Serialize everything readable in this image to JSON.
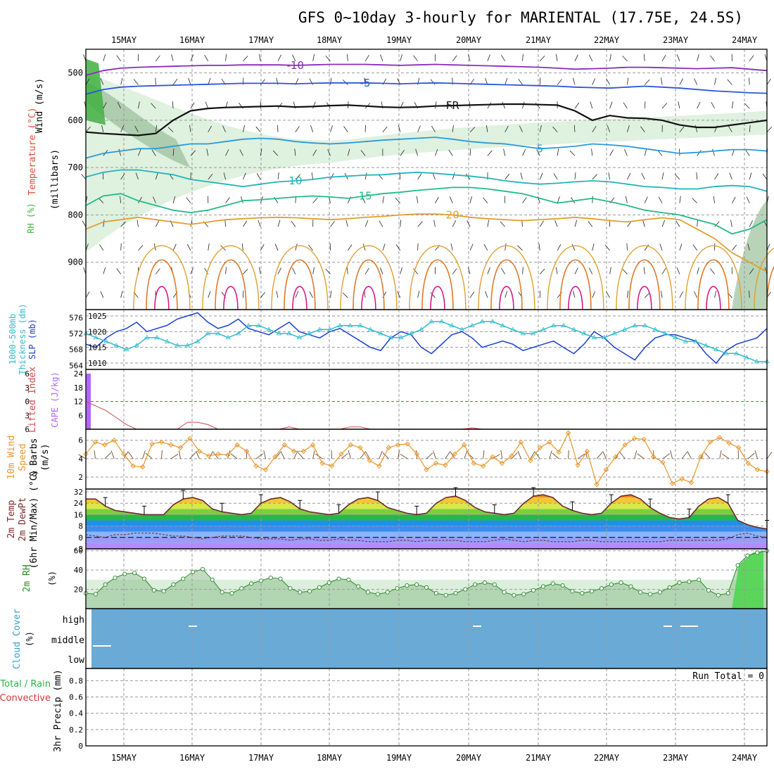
{
  "title": "GFS 0~10day 3-hourly for MARIENTAL (17.75E, 24.5S)",
  "dates": [
    "15MAY",
    "16MAY",
    "17MAY",
    "18MAY",
    "19MAY",
    "20MAY",
    "21MAY",
    "22MAY",
    "23MAY",
    "24MAY"
  ],
  "colors": {
    "frame": "#000000",
    "grid": "#9a9a9a",
    "rh_light": "#dcefdc",
    "rh_mid": "#a8c8a8",
    "rh_dark": "#40b040",
    "cloud": "#6aaad6",
    "cape_bar": "#b266ff",
    "li_line": "#d04848",
    "slp_line": "#1a3fd0",
    "thk_line": "#33bbcc",
    "wind_line": "#e8962a",
    "barb": "#6b4a2a",
    "rh2m_fill": "#8fbf8f",
    "rh2m_line": "#2a8a2a"
  },
  "chart_data": [
    {
      "panel": "upper_air",
      "type": "heatmap",
      "ylabel": "(millibars)",
      "left_labels": [
        "Wind (m/s)",
        "Temperature (°C)",
        "RH (%)"
      ],
      "ylim": [
        1000,
        450
      ],
      "yticks": [
        500,
        600,
        700,
        800,
        900
      ],
      "isotherm_labels": [
        "-10",
        "-5",
        "FR",
        "5",
        "10",
        "15",
        "20"
      ],
      "isotherms": [
        {
          "label": "-10",
          "color": "#8a2aba",
          "p": [
            505,
            495,
            490,
            488,
            487,
            486,
            485,
            484,
            484,
            483,
            483,
            483,
            484,
            483,
            482,
            482,
            482,
            483,
            484,
            483,
            482,
            483,
            484,
            485,
            486,
            487,
            488,
            490,
            492,
            491,
            490,
            488,
            488,
            489,
            490,
            491,
            490,
            489,
            492,
            495
          ]
        },
        {
          "label": "-5",
          "color": "#2a55d8",
          "p": [
            545,
            535,
            530,
            528,
            527,
            526,
            525,
            524,
            523,
            522,
            522,
            522,
            523,
            522,
            521,
            521,
            521,
            522,
            523,
            522,
            521,
            522,
            523,
            524,
            525,
            526,
            527,
            528,
            530,
            531,
            532,
            530,
            528,
            530,
            532,
            535,
            538,
            540,
            542,
            543
          ]
        },
        {
          "label": "FR",
          "color": "#111111",
          "p": [
            625,
            628,
            630,
            632,
            628,
            600,
            580,
            575,
            573,
            572,
            571,
            570,
            572,
            571,
            569,
            568,
            570,
            572,
            573,
            572,
            570,
            569,
            568,
            567,
            566,
            566,
            567,
            568,
            580,
            600,
            590,
            595,
            596,
            600,
            610,
            615,
            615,
            610,
            605,
            600
          ]
        },
        {
          "label": "5",
          "color": "#2a9ad8",
          "p": [
            680,
            670,
            665,
            660,
            660,
            655,
            650,
            650,
            645,
            640,
            638,
            640,
            645,
            648,
            650,
            648,
            645,
            642,
            640,
            638,
            636,
            640,
            645,
            648,
            650,
            655,
            660,
            658,
            655,
            650,
            652,
            655,
            660,
            665,
            670,
            668,
            665,
            662,
            662,
            665
          ]
        },
        {
          "label": "10",
          "color": "#20b4bc",
          "p": [
            720,
            710,
            705,
            705,
            710,
            715,
            725,
            730,
            735,
            740,
            735,
            730,
            728,
            725,
            720,
            718,
            716,
            715,
            712,
            710,
            712,
            715,
            718,
            722,
            728,
            732,
            735,
            733,
            730,
            728,
            730,
            735,
            740,
            742,
            745,
            745,
            740,
            738,
            740,
            750
          ]
        },
        {
          "label": "15",
          "color": "#22bb88",
          "p": [
            780,
            760,
            755,
            770,
            780,
            790,
            795,
            790,
            780,
            770,
            768,
            765,
            762,
            760,
            762,
            765,
            760,
            755,
            752,
            748,
            745,
            742,
            742,
            745,
            750,
            755,
            765,
            775,
            770,
            765,
            772,
            780,
            790,
            795,
            800,
            810,
            820,
            840,
            830,
            810
          ]
        },
        {
          "label": "20",
          "color": "#e0a030",
          "p": [
            830,
            815,
            810,
            805,
            810,
            815,
            820,
            815,
            810,
            808,
            806,
            805,
            806,
            808,
            810,
            808,
            805,
            803,
            800,
            798,
            798,
            800,
            805,
            808,
            810,
            812,
            810,
            808,
            805,
            808,
            812,
            815,
            810,
            806,
            810,
            830,
            850,
            880,
            900,
            920
          ]
        }
      ],
      "wind_barbs": "3-hourly barbs at each 50 mb level"
    },
    {
      "panel": "slp_thickness",
      "type": "line",
      "left_labels": [
        "1000-500mb",
        "Thickness (dm)",
        "SLP (mb)"
      ],
      "y_left": {
        "ticks": [
          564,
          568,
          572,
          576
        ],
        "lim": [
          563,
          578
        ]
      },
      "y_right": {
        "ticks": [
          1010,
          1015,
          1020,
          1025
        ],
        "lim": [
          1008,
          1027
        ]
      },
      "series": [
        {
          "name": "SLP (mb)",
          "axis": "right",
          "values": [
            1016,
            1015,
            1018,
            1020,
            1021,
            1023,
            1020,
            1021,
            1022,
            1024,
            1025,
            1026,
            1023,
            1021,
            1022,
            1024,
            1021,
            1020,
            1019,
            1021,
            1023,
            1020,
            1019,
            1018,
            1020,
            1021,
            1019,
            1017,
            1015,
            1014,
            1018,
            1020,
            1019,
            1015,
            1013,
            1016,
            1019,
            1020,
            1018,
            1015,
            1016,
            1017,
            1016,
            1014,
            1015,
            1016,
            1017,
            1015,
            1013,
            1016,
            1020,
            1018,
            1015,
            1013,
            1011,
            1015,
            1018,
            1019,
            1019,
            1018,
            1017,
            1013,
            1010,
            1014,
            1016,
            1017,
            1018,
            1021
          ]
        },
        {
          "name": "1000-500mb Thickness (dm)",
          "axis": "left",
          "values": [
            572,
            571,
            570,
            569,
            568,
            569,
            571,
            571,
            570,
            569,
            569,
            570,
            572,
            572,
            571,
            572,
            574,
            574,
            573,
            572,
            572,
            571,
            572,
            573,
            573,
            574,
            574,
            574,
            573,
            572,
            571,
            571,
            572,
            573,
            575,
            575,
            574,
            573,
            574,
            575,
            575,
            574,
            573,
            572,
            572,
            573,
            574,
            574,
            573,
            572,
            571,
            571,
            572,
            573,
            574,
            574,
            573,
            572,
            571,
            570,
            570,
            569,
            568,
            567,
            567,
            566,
            565,
            565
          ]
        }
      ]
    },
    {
      "panel": "cape_li",
      "type": "line",
      "left_labels": [
        "Lifted Index",
        "CAPE (J/kg)"
      ],
      "y_left": {
        "ticks": [
          "-6",
          "-3",
          "0",
          "3",
          "6"
        ]
      },
      "y_right": {
        "ticks": [
          "24",
          "18",
          "12",
          "6"
        ]
      },
      "cape_bars": [
        {
          "index": 0,
          "value": 24
        }
      ],
      "lifted_index": [
        0,
        1,
        2,
        3.5,
        5,
        6,
        6,
        6,
        6,
        6,
        4.5,
        4.5,
        5,
        6,
        6,
        6,
        6,
        6,
        6,
        6,
        5.5,
        6,
        6,
        6,
        6,
        6,
        5.5,
        5.5,
        6,
        6,
        6,
        6,
        6,
        6,
        6,
        6,
        6,
        6,
        5.7,
        6,
        6,
        6,
        6,
        6,
        6,
        6,
        6,
        6,
        6,
        6,
        6,
        6,
        6,
        6,
        6,
        6,
        6,
        6,
        6,
        6,
        6,
        6,
        6,
        6,
        6,
        6,
        6,
        6
      ]
    },
    {
      "panel": "wind10m",
      "type": "line",
      "left_labels": [
        "10m Wind",
        "Speed",
        "& Barbs",
        "(m/s)"
      ],
      "yticks": [
        2,
        4,
        6
      ],
      "ylim": [
        0.7,
        7.2
      ],
      "series": [
        {
          "name": "Speed",
          "values": [
            4.5,
            5.8,
            5.5,
            6,
            4.5,
            3.2,
            3.1,
            5.6,
            5.8,
            5.5,
            5.2,
            6.2,
            4.8,
            4.3,
            4.5,
            4.4,
            5.5,
            4.8,
            3.2,
            2.8,
            4.2,
            5.5,
            4.8,
            4.8,
            5.5,
            3.5,
            3.2,
            4.5,
            5.5,
            5.2,
            3.8,
            3.2,
            5.2,
            5.5,
            5.6,
            4.5,
            2.8,
            3.5,
            3.3,
            4.5,
            5.5,
            3.5,
            3.2,
            4.2,
            3.5,
            4.3,
            5.8,
            3.8,
            5.2,
            5.8,
            4.7,
            6.8,
            3.3,
            4.8,
            1.2,
            2.8,
            4.2,
            5.5,
            6.2,
            6.1,
            4.2,
            3.6,
            1.3,
            1.8,
            1.4,
            4.2,
            5.8,
            6.3,
            5.7,
            5.2,
            3.5,
            2.8,
            2.6
          ]
        }
      ]
    },
    {
      "panel": "temp2m",
      "type": "area",
      "left_labels": [
        "2m Temp",
        "2m DewPt",
        "(6hr Min/Max) (°C)"
      ],
      "yticks": [
        -8,
        0,
        8,
        16,
        24,
        32
      ],
      "ylim": [
        -8,
        34
      ],
      "series": [
        {
          "name": "2m Temp",
          "values": [
            27,
            27,
            22,
            19,
            18,
            17,
            16,
            16,
            16,
            23,
            27,
            28,
            26,
            20,
            18,
            17,
            16,
            17,
            24,
            27,
            28,
            25,
            20,
            18,
            17,
            16,
            17,
            23,
            27,
            28,
            26,
            21,
            19,
            17,
            16,
            17,
            24,
            28,
            29,
            26,
            21,
            18,
            17,
            16,
            17,
            24,
            29,
            30,
            28,
            22,
            19,
            17,
            16,
            17,
            24,
            29,
            30,
            27,
            21,
            17,
            14,
            13,
            14,
            22,
            27,
            28,
            24,
            12,
            9,
            7,
            6
          ]
        },
        {
          "name": "2m DewPt",
          "values": [
            2,
            1,
            0,
            2,
            2,
            3,
            3,
            3,
            2,
            1,
            1,
            0,
            -1,
            0,
            1,
            1,
            1,
            0,
            -1,
            -1,
            -1,
            -2,
            -1,
            -1,
            -2,
            -2,
            -1,
            -2,
            -2,
            -3,
            -3,
            -3,
            -2,
            -2,
            -3,
            -2,
            -2,
            -2,
            -2,
            -3,
            -3,
            -3,
            -2,
            -1,
            -2,
            -3,
            -2,
            -2,
            -3,
            -3,
            -3,
            -2,
            -2,
            -3,
            -3,
            -3,
            -3,
            -3,
            -3,
            -3,
            -2,
            -2,
            -2,
            -2,
            -2,
            -2,
            -1,
            2,
            3,
            1,
            0
          ]
        }
      ]
    },
    {
      "panel": "rh2m",
      "type": "area",
      "left_labels": [
        "2m RH",
        "(%)"
      ],
      "yticks": [
        20,
        40,
        60
      ],
      "ylim": [
        0,
        62
      ],
      "series": [
        {
          "name": "2m RH",
          "values": [
            16,
            15,
            25,
            32,
            36,
            37,
            31,
            19,
            18,
            25,
            31,
            38,
            41,
            30,
            17,
            16,
            21,
            26,
            29,
            32,
            31,
            21,
            17,
            18,
            22,
            27,
            31,
            30,
            23,
            17,
            15,
            17,
            21,
            24,
            25,
            22,
            16,
            14,
            16,
            20,
            25,
            27,
            25,
            17,
            14,
            15,
            19,
            23,
            26,
            24,
            18,
            16,
            18,
            21,
            25,
            27,
            23,
            17,
            15,
            17,
            22,
            27,
            28,
            30,
            19,
            14,
            16,
            45,
            55,
            58,
            60
          ]
        }
      ]
    },
    {
      "panel": "cloud",
      "type": "heatmap",
      "left_labels": [
        "Cloud Cover",
        "(%)"
      ],
      "levels": [
        "high",
        "middle",
        "low"
      ],
      "fill": "100%"
    },
    {
      "panel": "precip",
      "type": "bar",
      "left_labels": [
        "Total / Rain",
        "Convective",
        "3hr Precip (mm)"
      ],
      "yticks": [
        "0",
        "0.2",
        "0.4",
        "0.6",
        "0.8"
      ],
      "ylim": [
        0,
        0.95
      ],
      "values": [],
      "run_total_label": "Run Total = 0"
    }
  ]
}
